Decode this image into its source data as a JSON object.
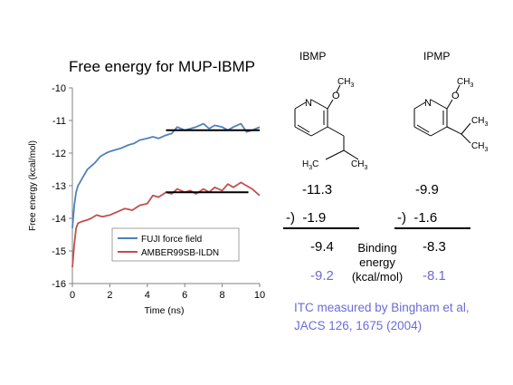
{
  "colors": {
    "fuji": "#4f81bd",
    "amber": "#c0504d",
    "reference_line": "#000000",
    "itc": "#6b6bd6"
  },
  "chart_data": {
    "type": "line",
    "title": "Free energy for MUP-IBMP",
    "xlabel": "Time (ns)",
    "ylabel": "Free energy (kcal/mol)",
    "xlim": [
      0,
      10
    ],
    "ylim": [
      -16,
      -10
    ],
    "xticks": [
      "0",
      "2",
      "4",
      "6",
      "8",
      "10"
    ],
    "yticks": [
      "-10",
      "-11",
      "-12",
      "-13",
      "-14",
      "-15",
      "-16"
    ],
    "grid": false,
    "legend_position": "bottom-center",
    "series": [
      {
        "name": "FUJI force field",
        "x": [
          0.0,
          0.1,
          0.2,
          0.3,
          0.4,
          0.6,
          0.8,
          1.0,
          1.2,
          1.5,
          1.8,
          2.0,
          2.3,
          2.6,
          3.0,
          3.3,
          3.6,
          4.0,
          4.3,
          4.6,
          5.0,
          5.3,
          5.6,
          6.0,
          6.3,
          6.6,
          7.0,
          7.3,
          7.6,
          8.0,
          8.3,
          8.6,
          9.0,
          9.3,
          9.6,
          10.0
        ],
        "y": [
          -14.3,
          -13.6,
          -13.2,
          -13.0,
          -12.9,
          -12.7,
          -12.5,
          -12.4,
          -12.3,
          -12.1,
          -12.0,
          -11.95,
          -11.9,
          -11.85,
          -11.75,
          -11.7,
          -11.6,
          -11.55,
          -11.5,
          -11.55,
          -11.45,
          -11.4,
          -11.2,
          -11.3,
          -11.25,
          -11.2,
          -11.1,
          -11.25,
          -11.15,
          -11.2,
          -11.3,
          -11.2,
          -11.1,
          -11.35,
          -11.3,
          -11.2
        ]
      },
      {
        "name": "AMBER99SB-ILDN",
        "x": [
          0.0,
          0.1,
          0.2,
          0.3,
          0.5,
          0.8,
          1.0,
          1.3,
          1.6,
          2.0,
          2.4,
          2.8,
          3.2,
          3.6,
          4.0,
          4.3,
          4.6,
          5.0,
          5.3,
          5.6,
          6.0,
          6.3,
          6.6,
          7.0,
          7.3,
          7.6,
          8.0,
          8.3,
          8.6,
          9.0,
          9.3,
          9.6,
          10.0
        ],
        "y": [
          -15.5,
          -14.8,
          -14.3,
          -14.15,
          -14.1,
          -14.05,
          -14.0,
          -13.9,
          -13.95,
          -13.9,
          -13.8,
          -13.7,
          -13.75,
          -13.6,
          -13.55,
          -13.3,
          -13.35,
          -13.2,
          -13.25,
          -13.1,
          -13.2,
          -13.15,
          -13.25,
          -13.1,
          -13.2,
          -13.05,
          -13.15,
          -12.95,
          -13.05,
          -12.9,
          -13.0,
          -13.1,
          -13.3
        ]
      }
    ],
    "reference_lines": [
      {
        "x": [
          5.0,
          10.0
        ],
        "y": -11.3
      },
      {
        "x": [
          5.0,
          9.4
        ],
        "y": -13.2
      }
    ]
  },
  "molecules": {
    "ibmp": {
      "name": "IBMP",
      "atom_n": "N",
      "atom_o": "O",
      "ch3_top": "CH",
      "ch3_top_sub": "3",
      "h3c_bottom": "H",
      "h3c_bottom_sub": "3",
      "h3c_bottom_c": "C",
      "ch3_bottom": "CH",
      "ch3_bottom_sub": "3"
    },
    "ipmp": {
      "name": "IPMP",
      "atom_n": "N",
      "atom_o": "O",
      "ch3_top": "CH",
      "ch3_top_sub": "3",
      "ch3_a": "CH",
      "ch3_a_sub": "3",
      "ch3_b": "CH",
      "ch3_b_sub": "3"
    }
  },
  "table": {
    "ibmp_complex": "-11.3",
    "ibmp_sub": "-)  -1.9",
    "ibmp_result": "-9.4",
    "ibmp_itc": "-9.2",
    "ipmp_complex": "-9.9",
    "ipmp_sub": "-)  -1.6",
    "ipmp_result": "-8.3",
    "ipmp_itc": "-8.1",
    "binding_energy_label": "Binding energy (kcal/mol)"
  },
  "itc_note_line1": "ITC measured by Bingham et al,",
  "itc_note_line2": "JACS 126, 1675 (2004)"
}
